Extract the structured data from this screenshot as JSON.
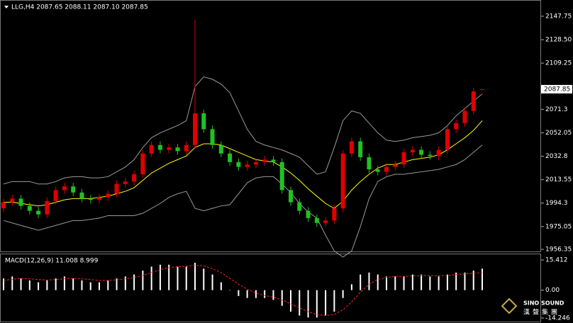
{
  "chart_data": [
    {
      "type": "candlestick",
      "title": "LLG,H4 2087.65 2088.11 2087.10 2087.85",
      "up_color": "#e00000",
      "down_color": "#22c022",
      "open": [
        1990,
        1995,
        1998,
        1992,
        1988,
        1985,
        1996,
        2005,
        2008,
        2003,
        1998,
        1997,
        1999,
        2002,
        2010,
        2012,
        2018,
        2035,
        2042,
        2038,
        2040,
        2037,
        2042,
        2068,
        2055,
        2042,
        2035,
        2028,
        2024,
        2026,
        2028,
        2030,
        2028,
        2005,
        1995,
        1988,
        1982,
        1978,
        1980,
        1990,
        2035,
        2045,
        2032,
        2022,
        2020,
        2024,
        2026,
        2036,
        2038,
        2034,
        2033,
        2038,
        2055,
        2060,
        2070,
        2087.65
      ],
      "high": [
        1998,
        2001,
        2001,
        1995,
        1991,
        1999,
        2008,
        2011,
        2011,
        2006,
        2001,
        2002,
        2005,
        2013,
        2015,
        2021,
        2038,
        2045,
        2045,
        2043,
        2043,
        2045,
        2145,
        2071,
        2058,
        2045,
        2038,
        2031,
        2029,
        2031,
        2033,
        2033,
        2031,
        2008,
        1998,
        1991,
        1985,
        1983,
        1993,
        2038,
        2048,
        2048,
        2035,
        2025,
        2027,
        2029,
        2039,
        2041,
        2041,
        2037,
        2041,
        2058,
        2063,
        2073,
        2089,
        2088.11
      ],
      "low": [
        1987,
        1992,
        1989,
        1985,
        1982,
        1982,
        1993,
        2002,
        2000,
        1995,
        1994,
        1994,
        1996,
        1999,
        2007,
        2009,
        2015,
        2032,
        2035,
        2035,
        2034,
        2034,
        2039,
        2052,
        2039,
        2032,
        2025,
        2021,
        2021,
        2023,
        2025,
        2025,
        2002,
        1992,
        1985,
        1979,
        1975,
        1975,
        1977,
        1987,
        2032,
        2029,
        2019,
        2017,
        2017,
        2021,
        2023,
        2033,
        2031,
        2030,
        2030,
        2035,
        2052,
        2057,
        2067,
        2087.1
      ],
      "close": [
        1995,
        1998,
        1992,
        1988,
        1985,
        1996,
        2005,
        2008,
        2003,
        1998,
        1997,
        1999,
        2002,
        2010,
        2012,
        2018,
        2035,
        2042,
        2038,
        2040,
        2037,
        2042,
        2068,
        2055,
        2042,
        2035,
        2028,
        2024,
        2026,
        2028,
        2030,
        2028,
        2005,
        1995,
        1988,
        1982,
        1978,
        1980,
        1990,
        2035,
        2045,
        2032,
        2022,
        2020,
        2024,
        2026,
        2036,
        2038,
        2034,
        2033,
        2038,
        2055,
        2060,
        2070,
        2086,
        2087.85
      ],
      "lines": [
        {
          "color": "#ffff00",
          "values": [
            1995,
            1995,
            1994,
            1993,
            1992,
            1993,
            1995,
            1997,
            1998,
            1998,
            1998,
            1999,
            2000,
            2002,
            2004,
            2007,
            2013,
            2019,
            2023,
            2027,
            2030,
            2033,
            2040,
            2043,
            2043,
            2042,
            2039,
            2036,
            2033,
            2030,
            2029,
            2028,
            2024,
            2019,
            2013,
            2006,
            2000,
            1994,
            1990,
            1996,
            2005,
            2012,
            2018,
            2023,
            2026,
            2026,
            2028,
            2030,
            2031,
            2032,
            2034,
            2038,
            2043,
            2048,
            2054,
            2062
          ]
        },
        {
          "color": "#9a9a9a",
          "values": [
            2010,
            2012,
            2012,
            2012,
            2010,
            2010,
            2012,
            2015,
            2016,
            2016,
            2015,
            2015,
            2016,
            2020,
            2024,
            2030,
            2040,
            2048,
            2052,
            2055,
            2058,
            2062,
            2090,
            2098,
            2096,
            2092,
            2085,
            2070,
            2055,
            2045,
            2042,
            2040,
            2038,
            2035,
            2032,
            2025,
            2018,
            2020,
            2040,
            2062,
            2070,
            2068,
            2060,
            2052,
            2046,
            2045,
            2046,
            2048,
            2049,
            2050,
            2052,
            2058,
            2066,
            2072,
            2078,
            2084
          ]
        },
        {
          "color": "#9a9a9a",
          "values": [
            1980,
            1978,
            1976,
            1974,
            1972,
            1974,
            1976,
            1978,
            1980,
            1980,
            1981,
            1982,
            1984,
            1984,
            1984,
            1984,
            1986,
            1990,
            1994,
            1999,
            2002,
            2004,
            1990,
            1988,
            1990,
            1992,
            1993,
            2002,
            2011,
            2015,
            2016,
            2016,
            2010,
            2003,
            1994,
            1987,
            1982,
            1968,
            1955,
            1950,
            1955,
            1975,
            1998,
            2012,
            2016,
            2018,
            2018,
            2019,
            2020,
            2021,
            2022,
            2024,
            2026,
            2030,
            2036,
            2042
          ]
        }
      ],
      "ylim": [
        1954.6,
        2160.5
      ],
      "yticks": [
        2147.75,
        {
          "value": 2128.5,
          "label": "2128.50"
        },
        2109.25,
        2071.3,
        2052.05,
        2032.8,
        2013.55,
        1994.3,
        1975.05,
        1956.35
      ]
    },
    {
      "type": "macd",
      "title": "MACD(12,26,9) 11.008 8.999",
      "hist_color": "#ffffff",
      "signal_color": "#ff2020",
      "hist": [
        6,
        7,
        6,
        5,
        4,
        5,
        6,
        7,
        6,
        5,
        4,
        4,
        5,
        6,
        7,
        8,
        10,
        12,
        13,
        13,
        12,
        12,
        14,
        11,
        8,
        4,
        0,
        -3,
        -4,
        -4,
        -4,
        -5,
        -8,
        -11,
        -13,
        -14,
        -14,
        -13,
        -11,
        -4,
        3,
        8,
        9,
        8,
        7,
        7,
        7,
        8,
        8,
        7,
        7,
        8,
        9,
        9,
        10,
        11.008
      ],
      "signal": [
        5,
        5.5,
        6,
        5.8,
        5.4,
        5.2,
        5.4,
        5.8,
        6,
        5.8,
        5.4,
        5,
        5,
        5.3,
        5.8,
        6.5,
        7.5,
        9,
        10.5,
        11.5,
        12,
        12.2,
        12.8,
        12.4,
        11,
        9,
        6,
        3,
        0.5,
        -1.5,
        -2.8,
        -3.5,
        -5,
        -7,
        -9,
        -11,
        -12.5,
        -13,
        -12.5,
        -10,
        -6,
        -1,
        3,
        5.5,
        6.5,
        7,
        7,
        7.3,
        7.5,
        7.4,
        7.3,
        7.5,
        8,
        8.3,
        8.6,
        8.999
      ],
      "ylim": [
        -16.08,
        18.34
      ],
      "yticks": [
        15.412,
        {
          "value": 0,
          "label": "0.00"
        },
        -14.246
      ]
    }
  ],
  "watermark": {
    "brand": "SINO SOUND",
    "name": "漢聲集團"
  }
}
